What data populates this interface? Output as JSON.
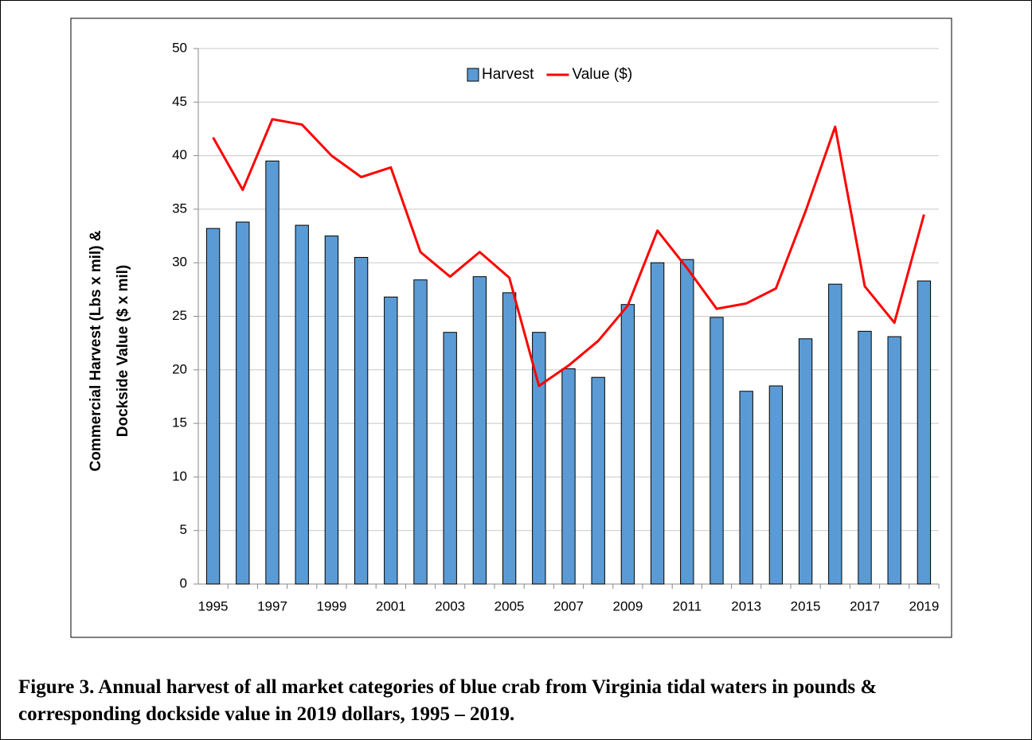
{
  "chart_data": {
    "type": "bar_line",
    "ylabel": [
      "Commercial Harvest (Lbs x mil) &",
      "Dockside Value  ($ x mil)"
    ],
    "caption": "Figure 3. Annual harvest of all market categories of blue crab from Virginia tidal waters in pounds & corresponding dockside value in 2019 dollars, 1995 – 2019.",
    "categories": [
      "1995",
      null,
      "1997",
      null,
      "1999",
      null,
      "2001",
      null,
      "2003",
      null,
      "2005",
      null,
      "2007",
      null,
      "2009",
      null,
      "2011",
      null,
      "2013",
      null,
      "2015",
      null,
      "2017",
      null,
      "2019"
    ],
    "series": [
      {
        "name": "Harvest",
        "type": "bar",
        "color": "#5b9bd5",
        "values": [
          33.2,
          33.8,
          39.5,
          33.5,
          32.5,
          30.5,
          26.8,
          28.4,
          23.5,
          28.7,
          27.2,
          23.5,
          20.1,
          19.3,
          26.1,
          30.0,
          30.3,
          24.9,
          18.0,
          18.5,
          22.9,
          28.0,
          23.6,
          23.1,
          28.3
        ]
      },
      {
        "name": "Value ($)",
        "type": "line",
        "color": "#ff0000",
        "values": [
          41.7,
          36.8,
          43.4,
          42.9,
          40.0,
          38.0,
          38.9,
          31.0,
          28.7,
          31.0,
          28.6,
          18.5,
          20.4,
          22.7,
          26.0,
          33.0,
          29.5,
          25.7,
          26.2,
          27.6,
          34.8,
          42.7,
          27.8,
          24.4,
          34.5
        ]
      }
    ],
    "ylim": [
      0,
      50
    ],
    "yticks": [
      0,
      5,
      10,
      15,
      20,
      25,
      30,
      35,
      40,
      45,
      50
    ],
    "grid": true,
    "legend": "top"
  }
}
